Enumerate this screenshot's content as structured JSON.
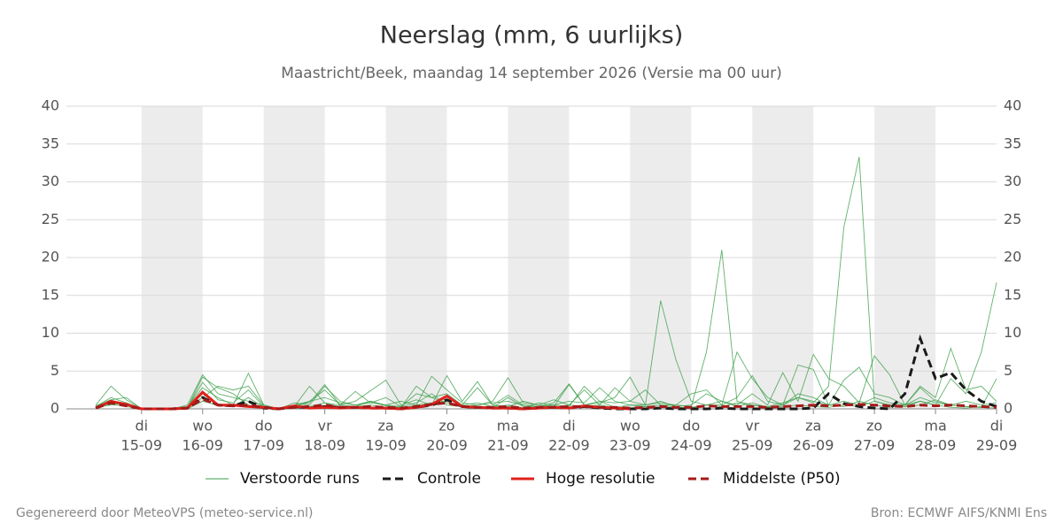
{
  "chart_data": {
    "type": "ensemble-line",
    "title": "Neerslag (mm, 6 uurlijks)",
    "subtitle": "Maastricht/Beek, maandag 14 september 2026 (Versie ma 00 uur)",
    "footer_left": "Gegenereerd door MeteoVPS (meteo-service.nl)",
    "footer_right": "Bron: ECMWF AIFS/KNMI Ens",
    "x": [
      14.25,
      14.5,
      14.75,
      15,
      15.25,
      15.5,
      15.75,
      16,
      16.25,
      16.5,
      16.75,
      17,
      17.25,
      17.5,
      17.75,
      18,
      18.25,
      18.5,
      18.75,
      19,
      19.25,
      19.5,
      19.75,
      20,
      20.25,
      20.5,
      20.75,
      21,
      21.25,
      21.5,
      21.75,
      22,
      22.25,
      22.5,
      22.75,
      23,
      23.25,
      23.5,
      23.75,
      24,
      24.25,
      24.5,
      24.75,
      25,
      25.25,
      25.5,
      25.75,
      26,
      26.25,
      26.5,
      26.75,
      27,
      27.25,
      27.5,
      27.75,
      28,
      28.25,
      28.5,
      28.75,
      29
    ],
    "xlim": [
      13.77,
      29
    ],
    "xticks": [
      {
        "value": 15,
        "label": "15-09",
        "day": "di"
      },
      {
        "value": 16,
        "label": "16-09",
        "day": "wo"
      },
      {
        "value": 17,
        "label": "17-09",
        "day": "do"
      },
      {
        "value": 18,
        "label": "18-09",
        "day": "vr"
      },
      {
        "value": 19,
        "label": "19-09",
        "day": "za"
      },
      {
        "value": 20,
        "label": "20-09",
        "day": "zo"
      },
      {
        "value": 21,
        "label": "21-09",
        "day": "ma"
      },
      {
        "value": 22,
        "label": "22-09",
        "day": "di"
      },
      {
        "value": 23,
        "label": "23-09",
        "day": "wo"
      },
      {
        "value": 24,
        "label": "24-09",
        "day": "do"
      },
      {
        "value": 25,
        "label": "25-09",
        "day": "vr"
      },
      {
        "value": 26,
        "label": "26-09",
        "day": "za"
      },
      {
        "value": 27,
        "label": "27-09",
        "day": "zo"
      },
      {
        "value": 28,
        "label": "28-09",
        "day": "ma"
      },
      {
        "value": 29,
        "label": "29-09",
        "day": "di"
      }
    ],
    "ylim": [
      0,
      40
    ],
    "yticks": [
      0,
      5,
      10,
      15,
      20,
      25,
      30,
      35,
      40
    ],
    "grid": true,
    "ensemble": {
      "name": "Verstoorde runs",
      "color": "#3a9e47",
      "runs": [
        [
          0.3,
          1.5,
          0.8,
          0,
          0,
          0,
          0.2,
          3.5,
          1.2,
          0.8,
          2.5,
          0.3,
          0,
          0.5,
          1.0,
          2.5,
          0.5,
          0.3,
          1.0,
          0.4,
          0.2,
          3.0,
          1.5,
          2.0,
          0.5,
          0.8,
          0.3,
          0.5,
          0.1,
          0.8,
          0.5,
          0.3,
          3.0,
          1.0,
          0.2,
          0.5,
          0.3,
          0.5,
          0.2,
          0.1,
          0.5,
          1.0,
          0.3,
          0.8,
          0.2,
          0.5,
          1.5,
          0.8,
          3.0,
          24.0,
          33.3,
          1.0,
          0.5,
          0.3,
          1.0,
          0.5,
          0.2,
          0.1,
          0.3,
          0.5
        ],
        [
          0.5,
          3.0,
          1.2,
          0,
          0,
          0,
          0.5,
          4.5,
          2.0,
          1.5,
          1.0,
          0.5,
          0,
          0.3,
          3.0,
          0.8,
          0.5,
          2.3,
          0.8,
          0.5,
          1.0,
          0.5,
          4.3,
          2.5,
          0.8,
          0.5,
          1.0,
          4.1,
          0.8,
          0.5,
          0.3,
          3.2,
          0.5,
          1.0,
          0.8,
          1.0,
          2.5,
          0.5,
          0.5,
          0.3,
          7.5,
          21.0,
          1.0,
          0.5,
          0.3,
          0.8,
          1.5,
          1.0,
          0.5,
          0.3,
          1.0,
          0.5,
          0.2,
          0.5,
          1.5,
          0.8,
          0.5,
          0.3,
          0.2,
          0.1
        ],
        [
          0.2,
          0.8,
          0.5,
          0,
          0,
          0,
          0.3,
          2.8,
          1.5,
          0.5,
          4.7,
          0.5,
          0,
          0.5,
          0.8,
          3.2,
          0.5,
          1.0,
          2.4,
          3.8,
          0.5,
          1.2,
          0.5,
          4.4,
          1.0,
          3.6,
          0.5,
          0.3,
          1.0,
          0.5,
          1.2,
          0.5,
          2.5,
          0.5,
          2.8,
          1.0,
          0.5,
          14.3,
          6.5,
          1.0,
          0.5,
          0.5,
          1.5,
          4.4,
          1.0,
          0.5,
          5.8,
          5.2,
          0.5,
          3.8,
          5.5,
          2.0,
          1.5,
          0.5,
          2.8,
          1.0,
          0.5,
          1.0,
          0.5,
          0.8
        ],
        [
          0.4,
          1.2,
          1.5,
          0,
          0,
          0,
          0.1,
          4.2,
          2.8,
          2.0,
          0.5,
          0.2,
          0,
          0.8,
          0.5,
          3.0,
          1.0,
          0.5,
          0.8,
          1.5,
          0.3,
          2.0,
          1.5,
          0.8,
          0.5,
          2.8,
          0.5,
          1.8,
          0.5,
          0.3,
          0.8,
          3.3,
          0.5,
          0.8,
          1.5,
          4.2,
          0.5,
          1.0,
          0.3,
          0.5,
          2.0,
          1.0,
          0.5,
          2.0,
          0.5,
          4.8,
          1.0,
          7.2,
          4.0,
          3.0,
          0.8,
          7.0,
          4.5,
          0.5,
          1.0,
          0.5,
          4.0,
          2.0,
          7.5,
          16.7
        ],
        [
          0.3,
          0.5,
          0.8,
          0,
          0,
          0,
          0.2,
          1.5,
          3.0,
          2.5,
          3.0,
          0.5,
          0,
          0.2,
          1.0,
          1.5,
          0.8,
          0.5,
          1.0,
          0.5,
          0.3,
          0.8,
          2.0,
          0.5,
          0.3,
          0.5,
          0.8,
          1.0,
          0.5,
          0.3,
          0.5,
          1.0,
          0.8,
          2.8,
          1.0,
          0.5,
          0.5,
          0.8,
          0.5,
          2.0,
          2.5,
          0.5,
          7.5,
          4.0,
          1.5,
          0.5,
          2.0,
          1.5,
          0.5,
          1.0,
          0.5,
          1.5,
          0.8,
          0.5,
          3.0,
          1.5,
          8.0,
          2.5,
          3.0,
          1.0
        ],
        [
          0.1,
          0.6,
          0.3,
          0,
          0,
          0,
          0,
          1.0,
          0.5,
          0.3,
          1.5,
          0.2,
          0,
          0.1,
          0.3,
          0.8,
          0.2,
          0.3,
          0.5,
          0.2,
          0.1,
          0.5,
          0.8,
          1.0,
          0.3,
          0.2,
          0.2,
          1.5,
          0.3,
          0.2,
          0.2,
          0.5,
          0.3,
          0.5,
          0.2,
          0.1,
          0.3,
          0.2,
          0.1,
          0.2,
          0.5,
          0.3,
          0.8,
          0.5,
          0.2,
          0.3,
          0.5,
          0.3,
          0.2,
          0.5,
          0.3,
          1.0,
          0.5,
          0.3,
          0.5,
          1.2,
          0.5,
          0.3,
          0.2,
          4.0
        ]
      ]
    },
    "series": [
      {
        "name": "Controle",
        "color": "#1a1a1a",
        "dash": true,
        "values": [
          0.1,
          1.0,
          0.5,
          0,
          0,
          0,
          0.1,
          1.5,
          0.5,
          0.4,
          1.0,
          0.1,
          0,
          0.3,
          0.1,
          0.3,
          0.2,
          0.2,
          0.1,
          0.1,
          0,
          0.2,
          0.5,
          1.2,
          0.3,
          0.2,
          0.1,
          0.1,
          0,
          0.1,
          0.2,
          0.1,
          0.3,
          0.1,
          0,
          0,
          0,
          0.1,
          0,
          0,
          0,
          0.1,
          0,
          0,
          0,
          0,
          0,
          0.1,
          2.0,
          0.7,
          0.3,
          0.1,
          0,
          2.0,
          9.3,
          4.0,
          4.8,
          2.5,
          1.0,
          0.3
        ]
      },
      {
        "name": "Hoge resolutie",
        "color": "#e0201b",
        "dash": false,
        "values": [
          0.1,
          1.0,
          0.6,
          0,
          0,
          0,
          0.1,
          2.2,
          0.5,
          0.5,
          0.3,
          0.2,
          0,
          0.4,
          0.1,
          0.2,
          0.1,
          0.2,
          0.1,
          0.1,
          0,
          0.2,
          0.6,
          1.7,
          0.3,
          0.2,
          0.1,
          0.1,
          0,
          0.1,
          0.2,
          0.1,
          0.4,
          0.2,
          0.1,
          0,
          null,
          null,
          null,
          null,
          null,
          null,
          null,
          null,
          null,
          null,
          null,
          null,
          null,
          null,
          null,
          null,
          null,
          null,
          null,
          null,
          null,
          null,
          null,
          null
        ]
      },
      {
        "name": "Middelste (P50)",
        "color": "#a51a1a",
        "dash": true,
        "values": [
          0.1,
          0.8,
          0.4,
          0,
          0,
          0,
          0.1,
          1.3,
          0.5,
          0.4,
          0.5,
          0.2,
          0,
          0.2,
          0.3,
          0.5,
          0.2,
          0.2,
          0.3,
          0.2,
          0.1,
          0.3,
          0.6,
          0.8,
          0.3,
          0.2,
          0.2,
          0.3,
          0.1,
          0.2,
          0.2,
          0.3,
          0.3,
          0.2,
          0.2,
          0.1,
          0.2,
          0.3,
          0.2,
          0.2,
          0.4,
          0.3,
          0.3,
          0.3,
          0.2,
          0.3,
          0.4,
          0.5,
          0.4,
          0.5,
          0.6,
          0.5,
          0.4,
          0.3,
          0.5,
          0.4,
          0.5,
          0.4,
          0.3,
          0.2
        ]
      }
    ]
  }
}
